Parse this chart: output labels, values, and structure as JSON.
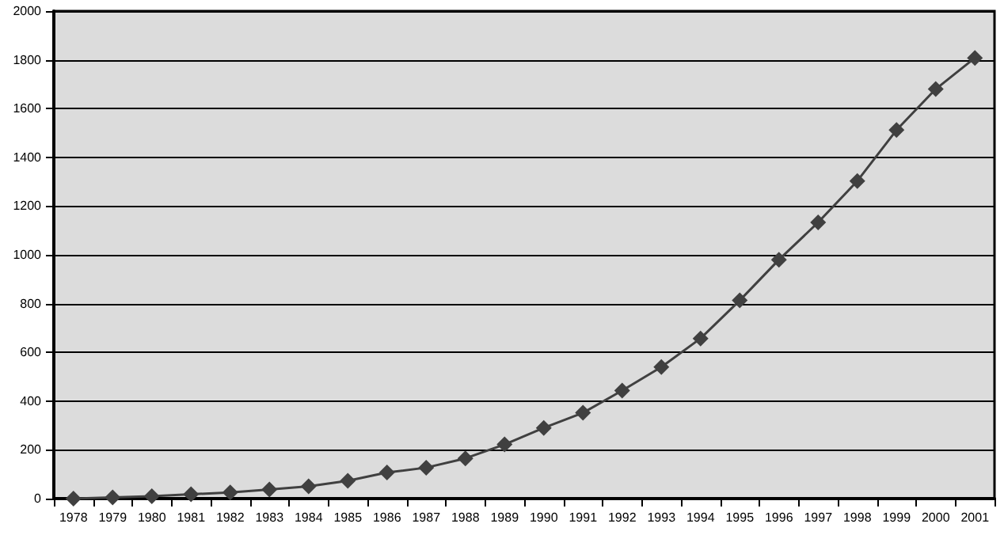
{
  "chart_data": {
    "type": "line",
    "categories": [
      "1978",
      "1979",
      "1980",
      "1981",
      "1982",
      "1983",
      "1984",
      "1985",
      "1986",
      "1987",
      "1988",
      "1989",
      "1990",
      "1991",
      "1992",
      "1993",
      "1994",
      "1995",
      "1996",
      "1997",
      "1998",
      "1999",
      "2000",
      "2001"
    ],
    "series": [
      {
        "color": "#404040",
        "values": [
          0,
          5,
          10,
          18,
          25,
          37,
          50,
          73,
          107,
          127,
          165,
          222,
          290,
          352,
          443,
          540,
          657,
          813,
          980,
          1133,
          1303,
          1512,
          1680,
          1808
        ]
      }
    ],
    "ylim": [
      0,
      2000
    ],
    "yticks": [
      0,
      200,
      400,
      600,
      800,
      1000,
      1200,
      1400,
      1600,
      1800,
      2000
    ],
    "grid": "y",
    "marker": "diamond"
  }
}
